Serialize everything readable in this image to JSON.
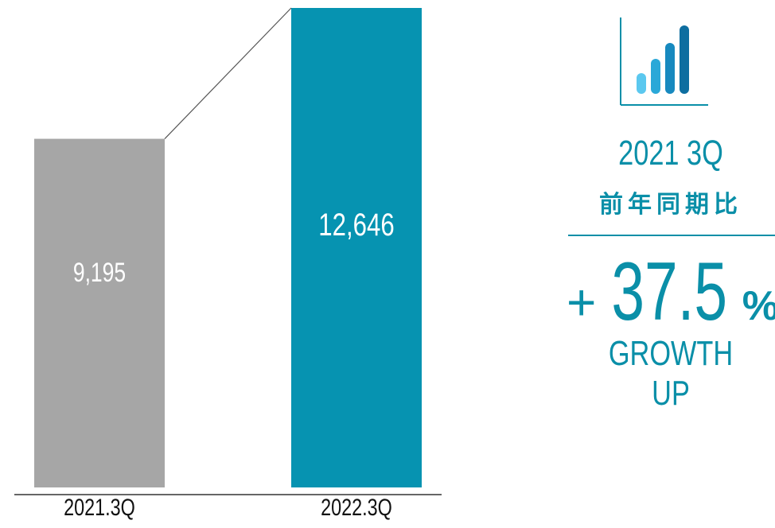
{
  "chart_data": {
    "type": "bar",
    "categories": [
      "2021.3Q",
      "2022.3Q"
    ],
    "values": [
      9195,
      12646
    ],
    "value_labels": [
      "9,195",
      "12,646"
    ],
    "colors": [
      "#a6a6a6",
      "#0693b1"
    ],
    "ylim": [
      0,
      12646
    ],
    "grid": false,
    "title": "",
    "xlabel": "",
    "ylabel": ""
  },
  "summary": {
    "period": "2021 3Q",
    "comparison": "前年同期比",
    "sign": "+",
    "percent": "37.5",
    "percent_unit": "%",
    "caption": "GROWTH UP",
    "accent": "#0a8fa8"
  },
  "icons": {
    "chart": "bar-chart-icon"
  }
}
